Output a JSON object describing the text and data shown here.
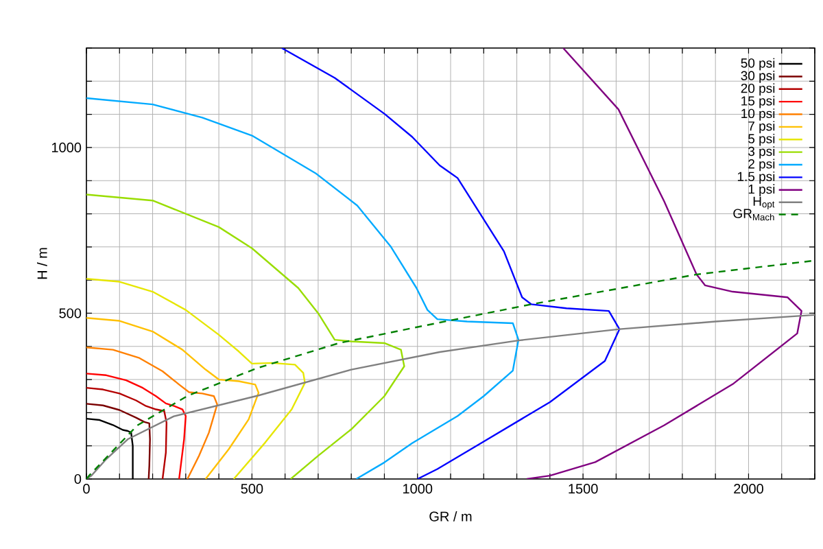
{
  "chart_data": {
    "type": "line",
    "xlabel": "GR / m",
    "ylabel": "H / m",
    "xlim": [
      0,
      2200
    ],
    "ylim": [
      0,
      1300
    ],
    "xticks": [
      0,
      {
        "value": 100,
        "label": null
      },
      {
        "value": 200,
        "label": null
      },
      {
        "value": 300,
        "label": null
      },
      {
        "value": 400,
        "label": null
      },
      500,
      {
        "value": 600,
        "label": null
      },
      {
        "value": 700,
        "label": null
      },
      {
        "value": 800,
        "label": null
      },
      {
        "value": 900,
        "label": null
      },
      1000,
      {
        "value": 1100,
        "label": null
      },
      {
        "value": 1200,
        "label": null
      },
      {
        "value": 1300,
        "label": null
      },
      {
        "value": 1400,
        "label": null
      },
      1500,
      {
        "value": 1600,
        "label": null
      },
      {
        "value": 1700,
        "label": null
      },
      {
        "value": 1800,
        "label": null
      },
      {
        "value": 1900,
        "label": null
      },
      2000,
      {
        "value": 2100,
        "label": null
      },
      {
        "value": 2200,
        "label": null
      }
    ],
    "yticks": [
      0,
      {
        "value": 100,
        "label": null
      },
      {
        "value": 200,
        "label": null
      },
      {
        "value": 300,
        "label": null
      },
      {
        "value": 400,
        "label": null
      },
      500,
      {
        "value": 600,
        "label": null
      },
      {
        "value": 700,
        "label": null
      },
      {
        "value": 800,
        "label": null
      },
      {
        "value": 900,
        "label": null
      },
      1000,
      {
        "value": 1100,
        "label": null
      },
      {
        "value": 1200,
        "label": null
      },
      {
        "value": 1300,
        "label": null
      }
    ],
    "grid": true,
    "legend": "top right",
    "series": [
      {
        "name": "50 psi",
        "color": "#000000",
        "x": [
          0,
          40,
          80,
          110,
          125,
          135,
          140,
          140
        ],
        "values": [
          182,
          178,
          163,
          148,
          145,
          140,
          100,
          0
        ]
      },
      {
        "name": "30 psi",
        "color": "#7a0000",
        "x": [
          0,
          50,
          100,
          150,
          175,
          190,
          192,
          190,
          188
        ],
        "values": [
          227,
          222,
          208,
          185,
          172,
          168,
          120,
          40,
          0
        ]
      },
      {
        "name": "20 psi",
        "color": "#b40000",
        "x": [
          0,
          50,
          100,
          150,
          180,
          210,
          235,
          242,
          240,
          230
        ],
        "values": [
          275,
          270,
          258,
          237,
          220,
          210,
          205,
          170,
          80,
          0
        ]
      },
      {
        "name": "15 psi",
        "color": "#ff0000",
        "x": [
          0,
          60,
          120,
          170,
          210,
          240,
          265,
          290,
          300,
          295,
          285,
          280
        ],
        "values": [
          318,
          313,
          298,
          275,
          250,
          228,
          220,
          210,
          190,
          120,
          40,
          0
        ]
      },
      {
        "name": "10 psi",
        "color": "#ff8000",
        "x": [
          0,
          80,
          160,
          230,
          280,
          310,
          350,
          385,
          395,
          370,
          340,
          305
        ],
        "values": [
          397,
          390,
          365,
          325,
          285,
          262,
          258,
          250,
          225,
          140,
          70,
          0
        ]
      },
      {
        "name": "7 psi",
        "color": "#ffc000",
        "x": [
          0,
          100,
          200,
          290,
          360,
          400,
          460,
          510,
          520,
          490,
          430,
          360
        ],
        "values": [
          486,
          477,
          445,
          390,
          330,
          300,
          295,
          285,
          260,
          180,
          90,
          0
        ]
      },
      {
        "name": "5 psi",
        "color": "#e6e600",
        "x": [
          0,
          100,
          200,
          300,
          400,
          460,
          500,
          560,
          630,
          655,
          660,
          620,
          540,
          445
        ],
        "values": [
          604,
          595,
          565,
          510,
          435,
          385,
          348,
          350,
          345,
          320,
          290,
          210,
          110,
          0
        ]
      },
      {
        "name": "3 psi",
        "color": "#99dd00",
        "x": [
          0,
          200,
          400,
          500,
          640,
          700,
          750,
          800,
          900,
          950,
          960,
          900,
          800,
          700,
          617
        ],
        "values": [
          858,
          840,
          760,
          696,
          576,
          500,
          420,
          415,
          410,
          390,
          340,
          250,
          150,
          70,
          0
        ]
      },
      {
        "name": "2 psi",
        "color": "#00aaff",
        "x": [
          0,
          200,
          350,
          500,
          694,
          818,
          920,
          997,
          1030,
          1060,
          1150,
          1288,
          1305,
          1288,
          1200,
          1121,
          984,
          900,
          815
        ],
        "values": [
          1149,
          1130,
          1090,
          1036,
          921,
          825,
          700,
          576,
          510,
          482,
          475,
          470,
          420,
          327,
          250,
          190,
          108,
          50,
          0
        ]
      },
      {
        "name": "1.5 psi",
        "color": "#0000ff",
        "x": [
          590,
          750,
          901,
          984,
          1067,
          1121,
          1261,
          1316,
          1344,
          1450,
          1578,
          1610,
          1566,
          1400,
          1192,
          1060,
          1000
        ],
        "values": [
          1300,
          1210,
          1101,
          1032,
          946,
          908,
          687,
          548,
          527,
          515,
          507,
          452,
          356,
          232,
          108,
          30,
          0
        ]
      },
      {
        "name": "1 psi",
        "color": "#800080",
        "x": [
          1440,
          1607,
          1745,
          1843,
          1869,
          1952,
          2118,
          2160,
          2147,
          1952,
          1745,
          1537,
          1400,
          1330
        ],
        "values": [
          1300,
          1115,
          838,
          617,
          584,
          565,
          548,
          507,
          439,
          286,
          162,
          51,
          10,
          0
        ]
      },
      {
        "name": "H$_{opt}$",
        "color": "#808080",
        "x": [
          0,
          15,
          60,
          125,
          264,
          520,
          800,
          1067,
          1305,
          1610,
          1900,
          2200
        ],
        "values": [
          0,
          10,
          60,
          120,
          189,
          252,
          330,
          383,
          418,
          452,
          475,
          495
        ]
      },
      {
        "name": "GR$_{Mach}$",
        "color": "#008000",
        "line_style": "dashed",
        "x": [
          0,
          8,
          154,
          306,
          514,
          763,
          1067,
          1344,
          1843,
          2200
        ],
        "values": [
          0,
          10,
          162,
          251,
          334,
          410,
          472,
          527,
          617,
          659
        ]
      }
    ]
  }
}
